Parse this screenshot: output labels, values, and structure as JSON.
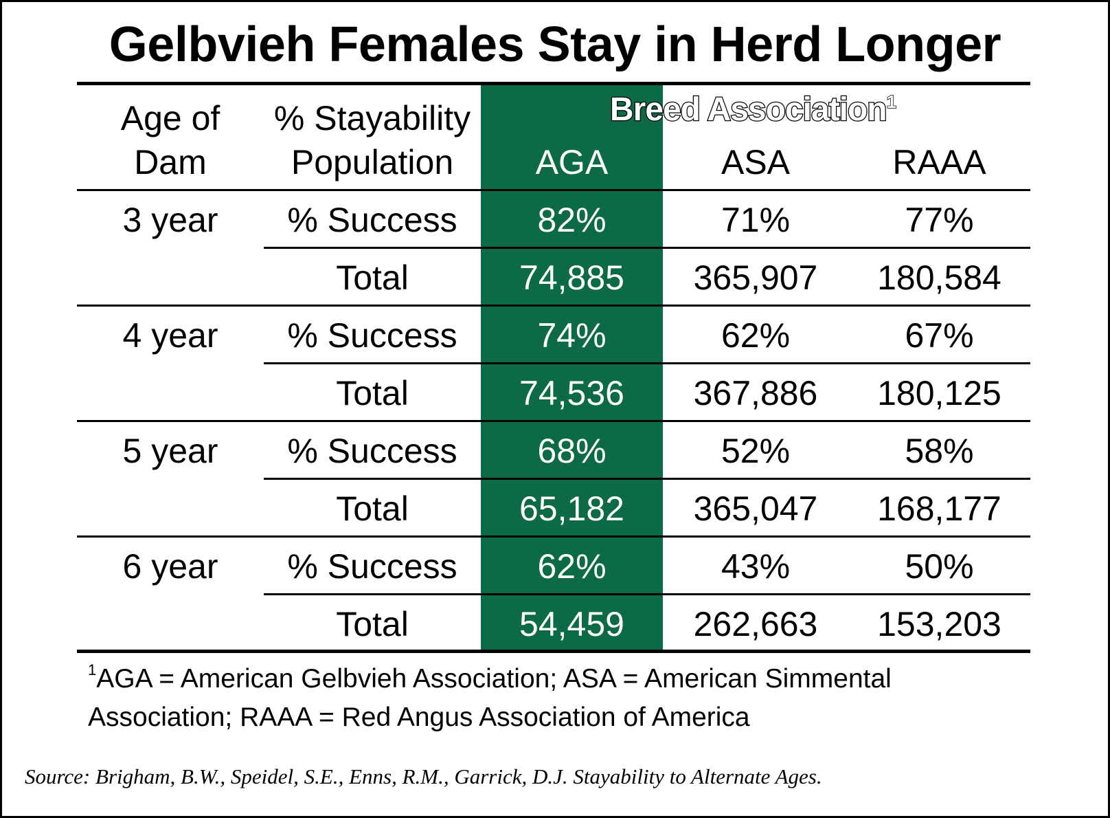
{
  "chart_data": {
    "type": "table",
    "title": "Gelbvieh Females Stay in Herd Longer",
    "group_header": "Breed Association",
    "group_header_sup": "1",
    "columns": [
      "Age of Dam",
      "% Stayability Population",
      "AGA",
      "ASA",
      "RAAA"
    ],
    "highlight_color": "#0c6a45",
    "rows": [
      {
        "age": "3 year",
        "metric": "% Success",
        "AGA": "82%",
        "ASA": "71%",
        "RAAA": "77%"
      },
      {
        "age": "",
        "metric": "Total",
        "AGA": "74,885",
        "ASA": "365,907",
        "RAAA": "180,584"
      },
      {
        "age": "4 year",
        "metric": "% Success",
        "AGA": "74%",
        "ASA": "62%",
        "RAAA": "67%"
      },
      {
        "age": "",
        "metric": "Total",
        "AGA": "74,536",
        "ASA": "367,886",
        "RAAA": "180,125"
      },
      {
        "age": "5 year",
        "metric": "% Success",
        "AGA": "68%",
        "ASA": "52%",
        "RAAA": "58%"
      },
      {
        "age": "",
        "metric": "Total",
        "AGA": "65,182",
        "ASA": "365,047",
        "RAAA": "168,177"
      },
      {
        "age": "6 year",
        "metric": "% Success",
        "AGA": "62%",
        "ASA": "43%",
        "RAAA": "50%"
      },
      {
        "age": "",
        "metric": "Total",
        "AGA": "54,459",
        "ASA": "262,663",
        "RAAA": "153,203"
      }
    ]
  },
  "header": {
    "col1_line1": "Age of",
    "col1_line2": "Dam",
    "col2_line1": "% Stayability",
    "col2_line2": "Population"
  },
  "footnote": {
    "marker": "1",
    "text": "AGA = American Gelbvieh Association; ASA = American Simmental Association; RAAA = Red Angus Association of America"
  },
  "source": "Source: Brigham, B.W., Speidel, S.E., Enns, R.M., Garrick, D.J. Stayability to Alternate Ages."
}
